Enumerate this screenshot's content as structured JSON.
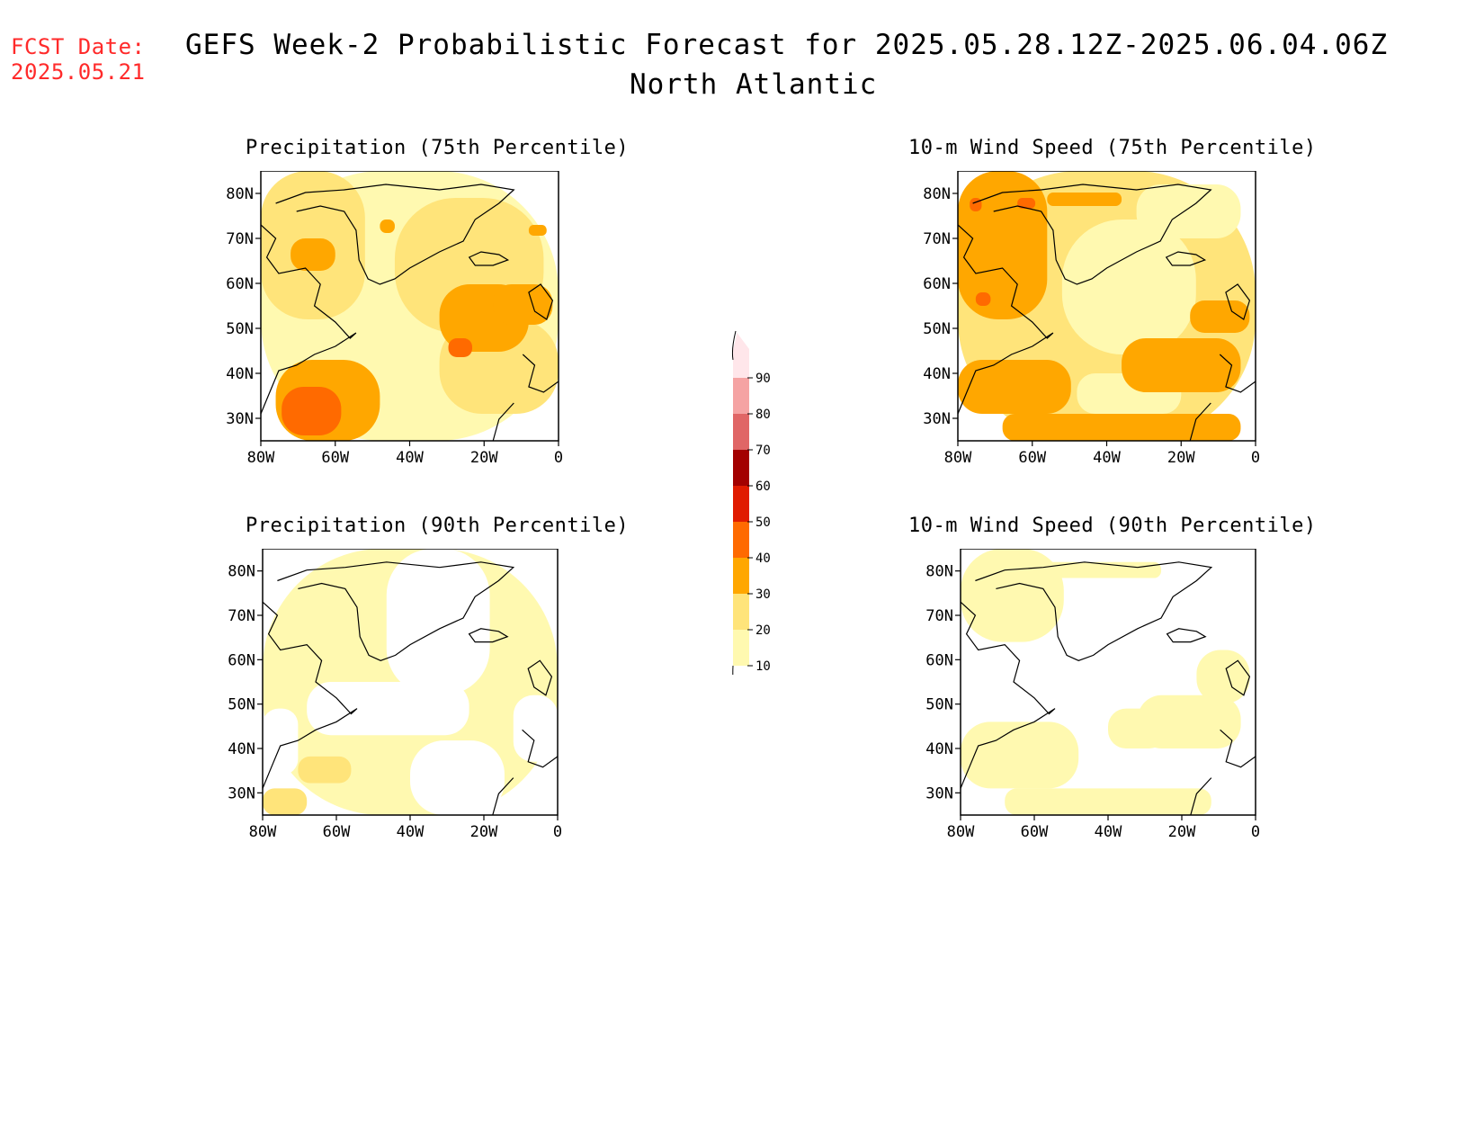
{
  "header": {
    "fcst_label": "FCST Date:",
    "fcst_date": "2025.05.21",
    "title": "GEFS Week-2 Probabilistic Forecast for 2025.05.28.12Z-2025.06.04.06Z",
    "subtitle": "North Atlantic"
  },
  "axes": {
    "lon_ticks": [
      "80W",
      "60W",
      "40W",
      "20W",
      "0"
    ],
    "lat_ticks": [
      "80N",
      "70N",
      "60N",
      "50N",
      "40N",
      "30N"
    ]
  },
  "colorbar": {
    "levels": [
      "10",
      "20",
      "30",
      "40",
      "50",
      "60",
      "70",
      "80",
      "90"
    ],
    "colors": [
      "#fff9b0",
      "#ffe47a",
      "#ffa700",
      "#ff6a00",
      "#e01b00",
      "#a30000",
      "#e06666",
      "#f5a3a3",
      "#ffe6ea"
    ]
  },
  "panels": [
    {
      "id": "precip75",
      "title": "Precipitation (75th Percentile)"
    },
    {
      "id": "wind75",
      "title": "10-m Wind Speed (75th Percentile)"
    },
    {
      "id": "precip90",
      "title": "Precipitation (90th Percentile)"
    },
    {
      "id": "wind90",
      "title": "10-m Wind Speed (90th Percentile)"
    }
  ]
}
